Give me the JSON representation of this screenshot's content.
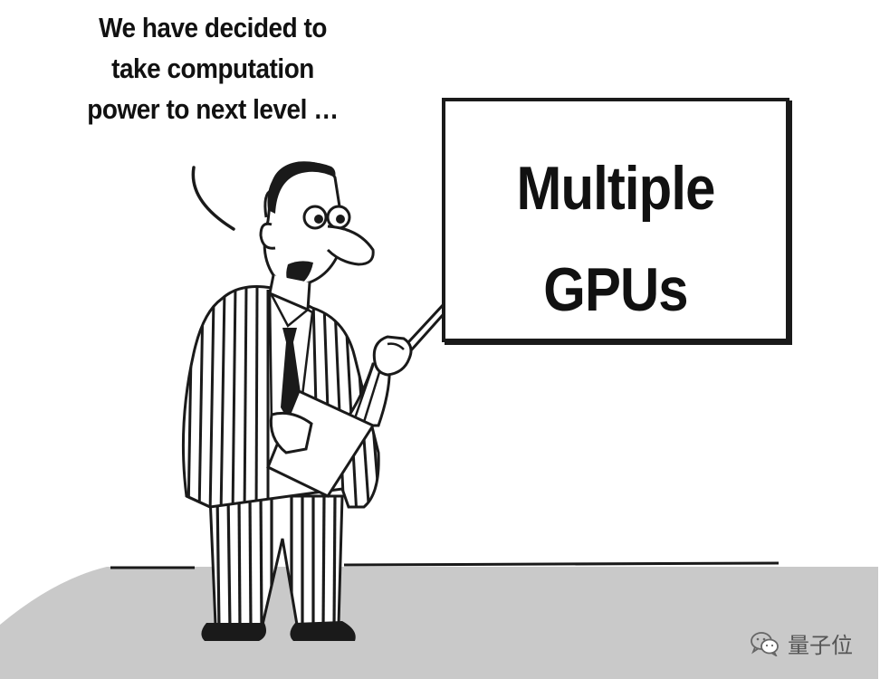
{
  "caption": {
    "lines": [
      "We have decided to",
      "take computation",
      "power to next level …"
    ]
  },
  "board": {
    "lines": [
      "Multiple",
      "GPUs"
    ]
  },
  "watermark": {
    "icon": "wechat-icon",
    "text": "量子位"
  }
}
